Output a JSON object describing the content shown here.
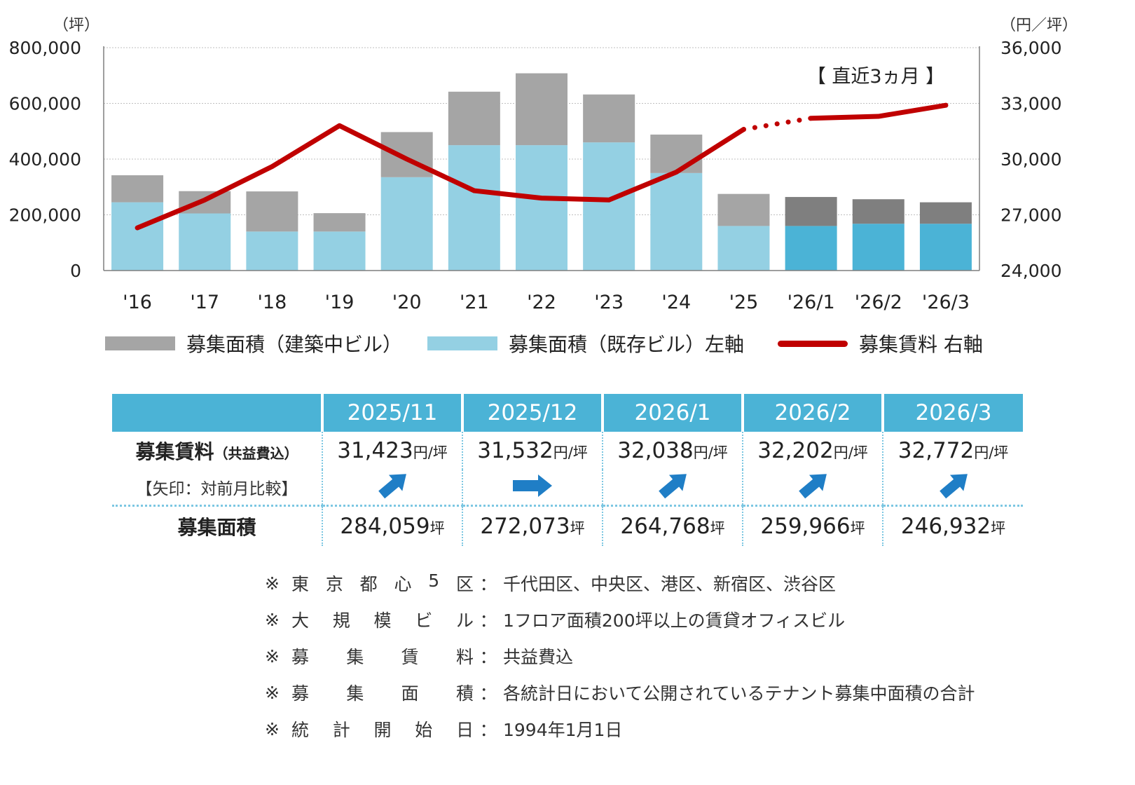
{
  "chart_data": {
    "type": "bar+line",
    "categories": [
      "'16",
      "'17",
      "'18",
      "'19",
      "'20",
      "'21",
      "'22",
      "'23",
      "'24",
      "'25",
      "'26/1",
      "'26/2",
      "'26/3"
    ],
    "left_axis": {
      "unit": "（坪）",
      "ylim": [
        0,
        800000
      ],
      "ticks": [
        "0",
        "200,000",
        "400,000",
        "600,000",
        "800,000"
      ]
    },
    "right_axis": {
      "unit": "（円／坪）",
      "ylim": [
        24000,
        36000
      ],
      "ticks": [
        "24,000",
        "27,000",
        "30,000",
        "33,000",
        "36,000"
      ]
    },
    "series": [
      {
        "name": "募集面積（既存ビル）左軸",
        "type": "bar",
        "stack": "area",
        "values": [
          245000,
          205000,
          140000,
          140000,
          335000,
          450000,
          450000,
          460000,
          350000,
          160000,
          160000,
          168000,
          168000
        ]
      },
      {
        "name": "募集面積（建築中ビル）",
        "type": "bar",
        "stack": "area",
        "values": [
          97000,
          80000,
          144000,
          66000,
          162000,
          192000,
          258000,
          172000,
          138000,
          115000,
          104000,
          88000,
          77000
        ]
      },
      {
        "name": "募集賃料 右軸",
        "type": "line",
        "values": [
          26300,
          27800,
          29600,
          31800,
          30000,
          28300,
          27900,
          27800,
          29300,
          31600,
          32200,
          32300,
          32900
        ]
      }
    ],
    "annotation": "【 直近3ヵ月 】",
    "colors": {
      "existing": "#94d0e3",
      "existing_recent": "#4bb3d6",
      "construction": "#a5a5a5",
      "construction_recent": "#7f7f7f",
      "rent": "#c00000",
      "grid": "#bfbfbf"
    }
  },
  "legend": {
    "construction": "募集面積（建築中ビル）",
    "existing": "募集面積（既存ビル）左軸",
    "rent": "募集賃料 右軸"
  },
  "table": {
    "columns": [
      "2025/11",
      "2025/12",
      "2026/1",
      "2026/2",
      "2026/3"
    ],
    "rent_label": "募集賃料",
    "rent_label_sub": "（共益費込）",
    "arrow_note": "【矢印：対前月比較】",
    "rent_values": [
      "31,423",
      "31,532",
      "32,038",
      "32,202",
      "32,772"
    ],
    "rent_unit": "円/坪",
    "arrows": [
      "up",
      "flat",
      "up",
      "up",
      "up"
    ],
    "area_label": "募集面積",
    "area_values": [
      "284,059",
      "272,073",
      "264,768",
      "259,966",
      "246,932"
    ],
    "area_unit": "坪"
  },
  "notes": [
    {
      "mark": "※",
      "label": "東京都心5区",
      "value": "千代田区、中央区、港区、新宿区、渋谷区"
    },
    {
      "mark": "※",
      "label": "大規模ビル",
      "value": "1フロア面積200坪以上の賃貸オフィスビル"
    },
    {
      "mark": "※",
      "label": "募集賃料",
      "value": "共益費込"
    },
    {
      "mark": "※",
      "label": "募集面積",
      "value": "各統計日において公開されているテナント募集中面積の合計"
    },
    {
      "mark": "※",
      "label": "統計開始日",
      "value": "1994年1月1日"
    }
  ]
}
